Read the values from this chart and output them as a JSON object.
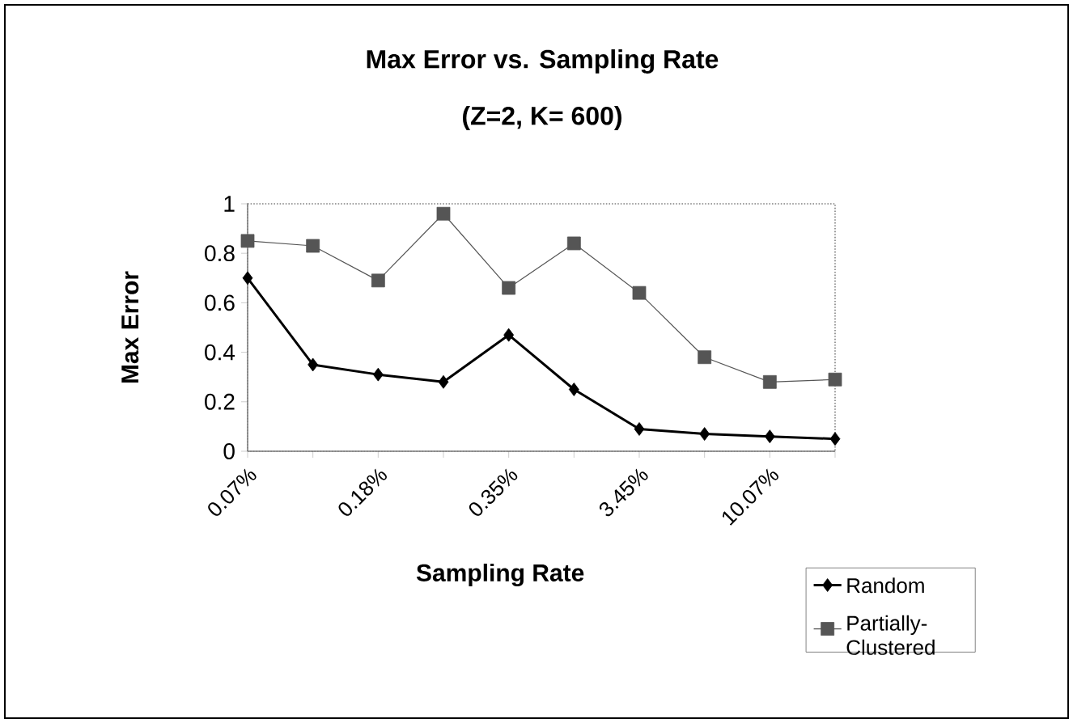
{
  "chart_data": {
    "type": "line",
    "title": "Max Error vs. Sampling Rate",
    "subtitle": "(Z=2, K= 600)",
    "xlabel": "Sampling Rate",
    "ylabel": "Max Error",
    "categories": [
      "0.07%",
      null,
      "0.18%",
      null,
      "0.35%",
      null,
      "3.45%",
      null,
      "10.07%",
      null
    ],
    "series": [
      {
        "name": "Random",
        "color": "#000000",
        "marker": "diamond",
        "values": [
          0.7,
          0.35,
          0.31,
          0.28,
          0.47,
          0.25,
          0.09,
          0.07,
          0.06,
          0.05
        ]
      },
      {
        "name": "Partially-Clustered",
        "color": "#555555",
        "marker": "square",
        "values": [
          0.85,
          0.83,
          0.69,
          0.96,
          0.66,
          0.84,
          0.64,
          0.38,
          0.28,
          0.29
        ]
      }
    ],
    "ylim": [
      0,
      1
    ],
    "yticks": [
      0,
      0.2,
      0.4,
      0.6,
      0.8,
      1
    ],
    "grid": false,
    "legend": "right"
  }
}
